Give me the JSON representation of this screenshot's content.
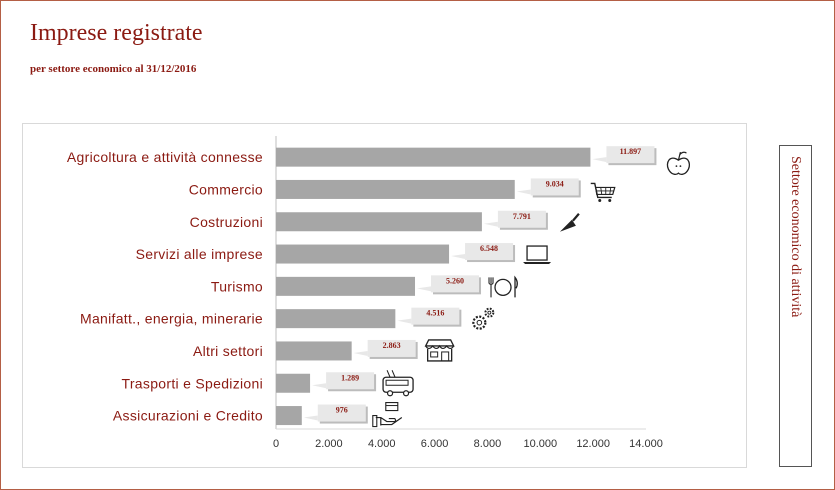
{
  "title": "Imprese registrate",
  "subtitle": "per settore economico al 31/12/2016",
  "side_label": "Settore economico di attività",
  "colors": {
    "accent": "#8b1a12",
    "bar": "#a6a6a6",
    "callout": "#d9d9d9"
  },
  "chart_data": {
    "type": "bar",
    "orientation": "horizontal",
    "title": "",
    "xlabel": "",
    "ylabel": "",
    "xlim": [
      0,
      14000
    ],
    "grid": false,
    "categories": [
      "Agricoltura e attività connesse",
      "Commercio",
      "Costruzioni",
      "Servizi alle imprese",
      "Turismo",
      "Manifatt., energia, minerarie",
      "Altri settori",
      "Trasporti e Spedizioni",
      "Assicurazioni e Credito"
    ],
    "values": [
      11897,
      9034,
      7791,
      6548,
      5260,
      4516,
      2863,
      1289,
      976
    ],
    "value_labels": [
      "11.897",
      "9.034",
      "7.791",
      "6.548",
      "5.260",
      "4.516",
      "2.863",
      "1.289",
      "976"
    ],
    "icons": [
      "apple-icon",
      "cart-icon",
      "trowel-icon",
      "laptop-icon",
      "dining-icon",
      "gears-icon",
      "shop-icon",
      "bus-icon",
      "hand-card-icon"
    ],
    "x_ticks": [
      "0",
      "2.000",
      "4.000",
      "6.000",
      "8.000",
      "10.000",
      "12.000",
      "14.000"
    ]
  }
}
